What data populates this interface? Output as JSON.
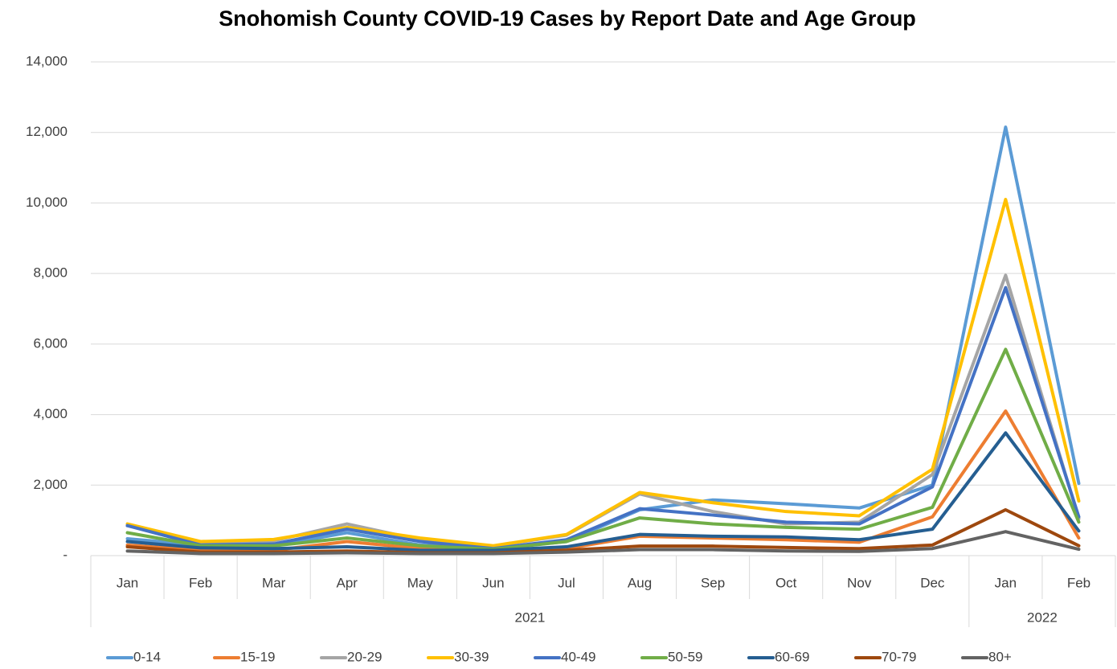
{
  "chart_data": {
    "type": "line",
    "title": "Snohomish County COVID-19 Cases by Report Date and Age Group",
    "category_groups": [
      {
        "label": "2021",
        "categories": [
          "Jan",
          "Feb",
          "Mar",
          "Apr",
          "May",
          "Jun",
          "Jul",
          "Aug",
          "Sep",
          "Oct",
          "Nov",
          "Dec"
        ]
      },
      {
        "label": "2022",
        "categories": [
          "Jan",
          "Feb"
        ]
      }
    ],
    "series": [
      {
        "name": "0-14",
        "color": "#5b9bd5",
        "values": [
          480,
          300,
          280,
          650,
          300,
          200,
          400,
          1300,
          1580,
          1470,
          1350,
          2000,
          12150,
          2050
        ]
      },
      {
        "name": "15-19",
        "color": "#ed7d31",
        "values": [
          300,
          150,
          150,
          400,
          200,
          130,
          200,
          550,
          500,
          450,
          380,
          1100,
          4100,
          500
        ]
      },
      {
        "name": "20-29",
        "color": "#a5a5a5",
        "values": [
          850,
          380,
          420,
          900,
          450,
          270,
          580,
          1750,
          1250,
          900,
          950,
          2300,
          7950,
          1050
        ]
      },
      {
        "name": "30-39",
        "color": "#ffc000",
        "values": [
          900,
          400,
          460,
          800,
          500,
          280,
          600,
          1790,
          1500,
          1250,
          1130,
          2450,
          10100,
          1550
        ]
      },
      {
        "name": "40-49",
        "color": "#4472c4",
        "values": [
          850,
          300,
          330,
          750,
          400,
          200,
          450,
          1330,
          1150,
          950,
          900,
          1950,
          7600,
          1100
        ]
      },
      {
        "name": "50-59",
        "color": "#70ad47",
        "values": [
          650,
          280,
          280,
          500,
          280,
          180,
          400,
          1070,
          900,
          800,
          750,
          1370,
          5850,
          950
        ]
      },
      {
        "name": "60-69",
        "color": "#255e91",
        "values": [
          400,
          220,
          200,
          250,
          150,
          150,
          250,
          600,
          550,
          530,
          450,
          750,
          3480,
          700
        ]
      },
      {
        "name": "70-79",
        "color": "#9e480e",
        "values": [
          250,
          100,
          100,
          130,
          80,
          80,
          150,
          270,
          270,
          230,
          200,
          300,
          1300,
          280
        ]
      },
      {
        "name": "80+",
        "color": "#636363",
        "values": [
          130,
          60,
          60,
          80,
          60,
          60,
          100,
          170,
          170,
          130,
          120,
          200,
          680,
          180
        ]
      }
    ],
    "ylim": [
      0,
      14000
    ],
    "yticks": [
      {
        "value": 0,
        "label": "-"
      },
      {
        "value": 2000,
        "label": "2,000"
      },
      {
        "value": 4000,
        "label": "4,000"
      },
      {
        "value": 6000,
        "label": "6,000"
      },
      {
        "value": 8000,
        "label": "8,000"
      },
      {
        "value": 10000,
        "label": "10,000"
      },
      {
        "value": 12000,
        "label": "12,000"
      },
      {
        "value": 14000,
        "label": "14,000"
      }
    ],
    "grid": true,
    "legend": "bottom"
  }
}
